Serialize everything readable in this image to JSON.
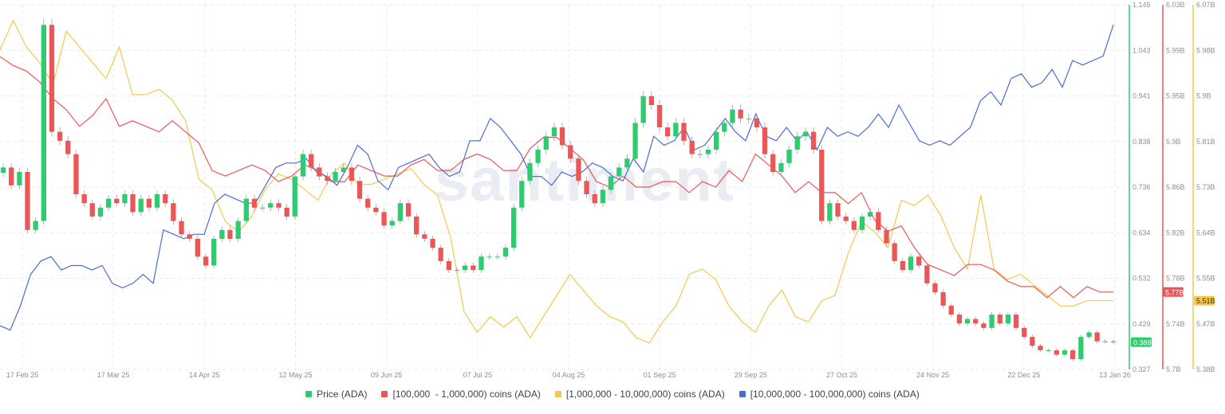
{
  "chart_data": {
    "type": "line",
    "watermark": "santiment",
    "x_ticks": [
      "17 Feb 25",
      "17 Mar 25",
      "14 Apr 25",
      "12 May 25",
      "09 Jun 25",
      "07 Jul 25",
      "04 Aug 25",
      "01 Sep 25",
      "29 Sep 25",
      "27 Oct 25",
      "24 Nov 25",
      "22 Dec 25",
      "13 Jan 26"
    ],
    "axes": {
      "price": {
        "ticks": [
          "1.145",
          "1.043",
          "0.941",
          "0.838",
          "0.736",
          "0.634",
          "0.532",
          "0.429",
          "0.327"
        ],
        "min": 0.327,
        "max": 1.145,
        "color": "#2ecc71",
        "last": "0.388"
      },
      "holders_100k_1m": {
        "ticks": [
          "6.03B",
          "5.99B",
          "5.95B",
          "5.9B",
          "5.86B",
          "5.82B",
          "5.78B",
          "5.74B",
          "5.7B"
        ],
        "min": 5.7,
        "max": 6.03,
        "color": "#eb5757",
        "last": "5.77B"
      },
      "holders_1m_10m": {
        "ticks": [
          "6.07B",
          "5.98B",
          "5.9B",
          "5.81B",
          "5.73B",
          "5.64B",
          "5.55B",
          "5.47B",
          "5.38B"
        ],
        "min": 5.38,
        "max": 6.07,
        "color": "#f2c94c",
        "last": "5.51B"
      }
    },
    "series": [
      {
        "name": "Price (ADA)",
        "color": "#2ecc71",
        "axis": "price",
        "type": "candlestick",
        "values": [
          0.78,
          0.74,
          0.77,
          0.64,
          0.66,
          1.1,
          0.86,
          0.84,
          0.81,
          0.72,
          0.7,
          0.67,
          0.69,
          0.71,
          0.7,
          0.72,
          0.68,
          0.71,
          0.69,
          0.72,
          0.7,
          0.66,
          0.63,
          0.62,
          0.58,
          0.56,
          0.62,
          0.64,
          0.62,
          0.66,
          0.71,
          0.69,
          0.69,
          0.7,
          0.69,
          0.67,
          0.76,
          0.81,
          0.78,
          0.76,
          0.75,
          0.77,
          0.78,
          0.75,
          0.71,
          0.69,
          0.68,
          0.65,
          0.66,
          0.7,
          0.67,
          0.63,
          0.62,
          0.6,
          0.57,
          0.55,
          0.55,
          0.56,
          0.55,
          0.58,
          0.58,
          0.58,
          0.6,
          0.69,
          0.75,
          0.79,
          0.82,
          0.85,
          0.87,
          0.83,
          0.8,
          0.75,
          0.72,
          0.7,
          0.73,
          0.76,
          0.78,
          0.8,
          0.88,
          0.94,
          0.92,
          0.87,
          0.85,
          0.88,
          0.84,
          0.81,
          0.81,
          0.82,
          0.86,
          0.88,
          0.91,
          0.89,
          0.89,
          0.87,
          0.81,
          0.77,
          0.79,
          0.82,
          0.85,
          0.86,
          0.82,
          0.66,
          0.7,
          0.67,
          0.66,
          0.64,
          0.67,
          0.68,
          0.64,
          0.61,
          0.57,
          0.55,
          0.58,
          0.56,
          0.52,
          0.5,
          0.47,
          0.45,
          0.43,
          0.44,
          0.43,
          0.42,
          0.45,
          0.43,
          0.45,
          0.42,
          0.4,
          0.38,
          0.37,
          0.37,
          0.36,
          0.37,
          0.35,
          0.4,
          0.41,
          0.39,
          0.39,
          0.388
        ]
      },
      {
        "name": "[100,000  - 1,000,000) coins (ADA)",
        "color": "#eb5757",
        "axis": "holders_100k_1m",
        "values": [
          5.983,
          5.975,
          5.97,
          5.96,
          5.945,
          5.935,
          5.92,
          5.93,
          5.945,
          5.92,
          5.925,
          5.92,
          5.915,
          5.925,
          5.915,
          5.905,
          5.88,
          5.875,
          5.88,
          5.885,
          5.88,
          5.87,
          5.875,
          5.885,
          5.88,
          5.87,
          5.87,
          5.885,
          5.88,
          5.875,
          5.875,
          5.885,
          5.89,
          5.88,
          5.88,
          5.89,
          5.895,
          5.89,
          5.88,
          5.88,
          5.9,
          5.91,
          5.91,
          5.9,
          5.89,
          5.87,
          5.865,
          5.875,
          5.865,
          5.865,
          5.87,
          5.87,
          5.86,
          5.87,
          5.865,
          5.88,
          5.87,
          5.895,
          5.885,
          5.875,
          5.86,
          5.87,
          5.86,
          5.86,
          5.85,
          5.86,
          5.835,
          5.825,
          5.83,
          5.81,
          5.795,
          5.79,
          5.785,
          5.795,
          5.795,
          5.79,
          5.78,
          5.775,
          5.775,
          5.765,
          5.775,
          5.765,
          5.775,
          5.77,
          5.77
        ]
      },
      {
        "name": "[1,000,000 - 10,000,000) coins (ADA)",
        "color": "#f2c94c",
        "axis": "holders_1m_10m",
        "values": [
          5.985,
          6.04,
          5.99,
          5.96,
          5.92,
          6.02,
          5.99,
          5.96,
          5.93,
          5.99,
          5.9,
          5.9,
          5.91,
          5.89,
          5.85,
          5.74,
          5.72,
          5.66,
          5.64,
          5.67,
          5.72,
          5.75,
          5.74,
          5.72,
          5.7,
          5.75,
          5.77,
          5.73,
          5.73,
          5.74,
          5.75,
          5.76,
          5.73,
          5.71,
          5.63,
          5.49,
          5.45,
          5.48,
          5.46,
          5.48,
          5.44,
          5.48,
          5.52,
          5.56,
          5.53,
          5.5,
          5.48,
          5.47,
          5.44,
          5.43,
          5.47,
          5.5,
          5.56,
          5.57,
          5.55,
          5.5,
          5.47,
          5.45,
          5.5,
          5.53,
          5.48,
          5.47,
          5.51,
          5.52,
          5.6,
          5.66,
          5.64,
          5.61,
          5.7,
          5.69,
          5.71,
          5.67,
          5.61,
          5.57,
          5.71,
          5.57,
          5.55,
          5.56,
          5.54,
          5.52,
          5.5,
          5.5,
          5.51,
          5.51,
          5.51
        ]
      },
      {
        "name": "[10,000,000 - 100,000,000) coins (ADA)",
        "color": "#4a6cd4",
        "axis": "holders_10m_100m",
        "values": [
          0.425,
          0.415,
          0.47,
          0.54,
          0.57,
          0.58,
          0.55,
          0.56,
          0.56,
          0.55,
          0.56,
          0.52,
          0.51,
          0.52,
          0.54,
          0.52,
          0.64,
          0.63,
          0.62,
          0.63,
          0.63,
          0.7,
          0.72,
          0.71,
          0.7,
          0.7,
          0.74,
          0.78,
          0.79,
          0.79,
          0.8,
          0.77,
          0.76,
          0.74,
          0.78,
          0.83,
          0.81,
          0.75,
          0.73,
          0.78,
          0.79,
          0.8,
          0.81,
          0.78,
          0.76,
          0.77,
          0.84,
          0.84,
          0.89,
          0.87,
          0.84,
          0.81,
          0.76,
          0.76,
          0.74,
          0.77,
          0.76,
          0.77,
          0.79,
          0.78,
          0.76,
          0.75,
          0.8,
          0.77,
          0.85,
          0.83,
          0.84,
          0.87,
          0.82,
          0.83,
          0.86,
          0.89,
          0.86,
          0.84,
          0.9,
          0.85,
          0.84,
          0.87,
          0.84,
          0.86,
          0.82,
          0.87,
          0.85,
          0.86,
          0.85,
          0.87,
          0.9,
          0.87,
          0.92,
          0.88,
          0.84,
          0.83,
          0.84,
          0.83,
          0.85,
          0.87,
          0.93,
          0.95,
          0.92,
          0.98,
          0.99,
          0.96,
          0.97,
          1.0,
          0.96,
          1.02,
          1.01,
          1.02,
          1.03,
          1.1
        ]
      }
    ]
  },
  "legend": [
    {
      "label": "Price (ADA)",
      "color": "#2ecc71"
    },
    {
      "label": "[100,000  - 1,000,000) coins (ADA)",
      "color": "#eb5757"
    },
    {
      "label": "[1,000,000 - 10,000,000) coins (ADA)",
      "color": "#f2c94c"
    },
    {
      "label": "[10,000,000 - 100,000,000) coins (ADA)",
      "color": "#4a6cd4"
    }
  ]
}
